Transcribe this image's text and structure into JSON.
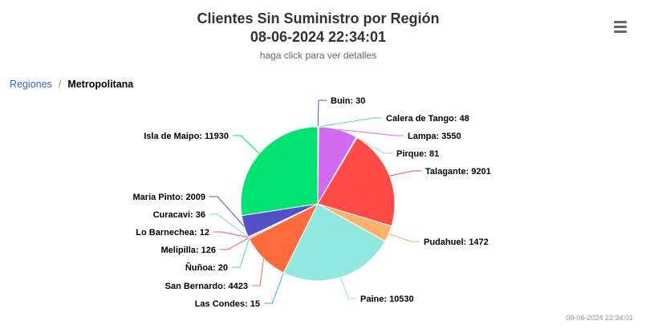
{
  "title_line1": "Clientes Sin Suministro por Región",
  "title_line2": "08-06-2024 22:34:01",
  "subtitle": "haga click para ver detalles",
  "menu_icon": "hamburger-menu-icon",
  "breadcrumb": {
    "root": "Regiones",
    "separator": "/",
    "current": "Metropolitana"
  },
  "credits": "08-06-2024 22:34:01",
  "chart_data": {
    "type": "pie",
    "title": "Clientes Sin Suministro por Región",
    "slices": [
      {
        "label": "Buin",
        "value": 30,
        "color": "#6b4fc4"
      },
      {
        "label": "Calera de Tango",
        "value": 48,
        "color": "#4fe0b0"
      },
      {
        "label": "Lampa",
        "value": 3550,
        "color": "#d36bf2"
      },
      {
        "label": "Pirque",
        "value": 81,
        "color": "#7fe0d8"
      },
      {
        "label": "Talagante",
        "value": 9201,
        "color": "#ff4a45"
      },
      {
        "label": "Pudahuel",
        "value": 1472,
        "color": "#ffb26b"
      },
      {
        "label": "Paine",
        "value": 10530,
        "color": "#91e8e1"
      },
      {
        "label": "Las Condes",
        "value": 15,
        "color": "#2bb8e0"
      },
      {
        "label": "San Bernardo",
        "value": 4423,
        "color": "#ff6b3d"
      },
      {
        "label": "Ñuñoa",
        "value": 20,
        "color": "#4fd6c4"
      },
      {
        "label": "Melipilla",
        "value": 126,
        "color": "#ff5a5a"
      },
      {
        "label": "Lo Barnechea",
        "value": 12,
        "color": "#f04fc0"
      },
      {
        "label": "Curacavi",
        "value": 36,
        "color": "#7fd6d6"
      },
      {
        "label": "Maria Pinto",
        "value": 2009,
        "color": "#5450c8"
      },
      {
        "label": "Isla de Maipo",
        "value": 11930,
        "color": "#00e272"
      }
    ]
  }
}
